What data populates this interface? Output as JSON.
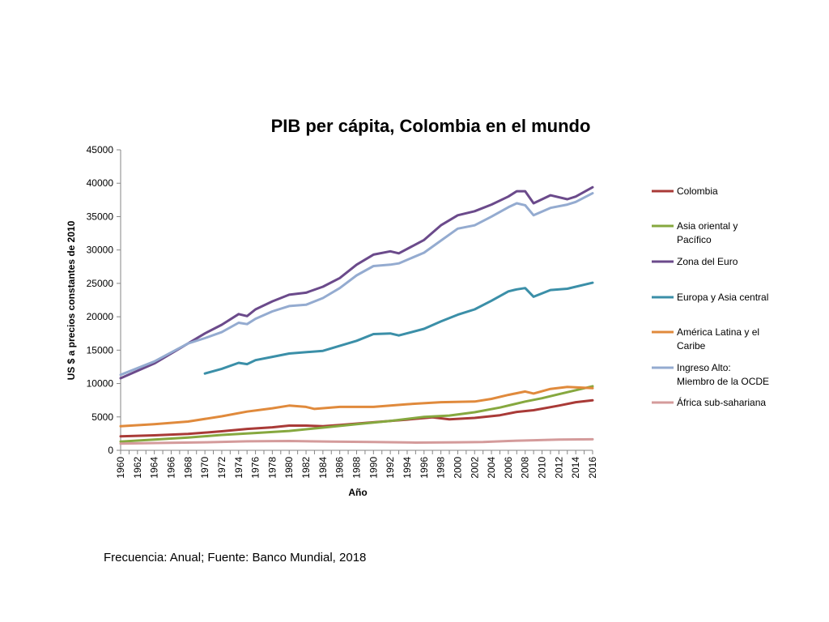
{
  "chart_data": {
    "type": "line",
    "title": "PIB per cápita, Colombia en el mundo",
    "xlabel": "Año",
    "ylabel": "US $ a precios constantes de 2010",
    "xlim": [
      1960,
      2016
    ],
    "ylim": [
      0,
      45000
    ],
    "yticks": [
      0,
      5000,
      10000,
      15000,
      20000,
      25000,
      30000,
      35000,
      40000,
      45000
    ],
    "xticks": [
      1960,
      1962,
      1964,
      1966,
      1968,
      1970,
      1972,
      1974,
      1976,
      1978,
      1980,
      1982,
      1984,
      1986,
      1988,
      1990,
      1992,
      1994,
      1996,
      1998,
      2000,
      2002,
      2004,
      2006,
      2008,
      2010,
      2012,
      2014,
      2016
    ],
    "grid": false,
    "legend_position": "right",
    "series": [
      {
        "name": "Colombia",
        "color": "#a93a37",
        "points": [
          [
            1960,
            2100
          ],
          [
            1964,
            2250
          ],
          [
            1968,
            2450
          ],
          [
            1972,
            2850
          ],
          [
            1975,
            3200
          ],
          [
            1978,
            3450
          ],
          [
            1980,
            3700
          ],
          [
            1982,
            3700
          ],
          [
            1984,
            3600
          ],
          [
            1986,
            3800
          ],
          [
            1990,
            4200
          ],
          [
            1994,
            4600
          ],
          [
            1997,
            4950
          ],
          [
            1999,
            4650
          ],
          [
            2002,
            4850
          ],
          [
            2005,
            5250
          ],
          [
            2007,
            5750
          ],
          [
            2009,
            6000
          ],
          [
            2012,
            6700
          ],
          [
            2014,
            7200
          ],
          [
            2016,
            7500
          ]
        ]
      },
      {
        "name": "Asia oriental y Pacífico",
        "color": "#86a83f",
        "points": [
          [
            1960,
            1300
          ],
          [
            1964,
            1600
          ],
          [
            1968,
            1900
          ],
          [
            1972,
            2300
          ],
          [
            1976,
            2600
          ],
          [
            1980,
            2900
          ],
          [
            1984,
            3400
          ],
          [
            1988,
            3900
          ],
          [
            1992,
            4400
          ],
          [
            1996,
            5000
          ],
          [
            1999,
            5200
          ],
          [
            2002,
            5700
          ],
          [
            2005,
            6400
          ],
          [
            2008,
            7300
          ],
          [
            2010,
            7800
          ],
          [
            2012,
            8400
          ],
          [
            2014,
            9000
          ],
          [
            2016,
            9600
          ]
        ]
      },
      {
        "name": "Zona del Euro",
        "color": "#6b4a8b",
        "points": [
          [
            1960,
            10800
          ],
          [
            1964,
            13000
          ],
          [
            1968,
            16000
          ],
          [
            1970,
            17500
          ],
          [
            1972,
            18800
          ],
          [
            1974,
            20400
          ],
          [
            1975,
            20100
          ],
          [
            1976,
            21100
          ],
          [
            1978,
            22300
          ],
          [
            1980,
            23300
          ],
          [
            1982,
            23600
          ],
          [
            1984,
            24500
          ],
          [
            1986,
            25800
          ],
          [
            1988,
            27800
          ],
          [
            1990,
            29300
          ],
          [
            1992,
            29800
          ],
          [
            1993,
            29500
          ],
          [
            1996,
            31500
          ],
          [
            1998,
            33700
          ],
          [
            2000,
            35200
          ],
          [
            2002,
            35800
          ],
          [
            2004,
            36800
          ],
          [
            2006,
            38000
          ],
          [
            2007,
            38800
          ],
          [
            2008,
            38800
          ],
          [
            2009,
            37000
          ],
          [
            2011,
            38200
          ],
          [
            2013,
            37600
          ],
          [
            2014,
            38000
          ],
          [
            2016,
            39400
          ]
        ]
      },
      {
        "name": "Europa y Asia central",
        "color": "#3b8fa8",
        "points": [
          [
            1970,
            11500
          ],
          [
            1972,
            12200
          ],
          [
            1974,
            13100
          ],
          [
            1975,
            12900
          ],
          [
            1976,
            13500
          ],
          [
            1978,
            14000
          ],
          [
            1980,
            14500
          ],
          [
            1984,
            14900
          ],
          [
            1988,
            16400
          ],
          [
            1990,
            17400
          ],
          [
            1992,
            17500
          ],
          [
            1993,
            17200
          ],
          [
            1996,
            18200
          ],
          [
            1998,
            19300
          ],
          [
            2000,
            20300
          ],
          [
            2002,
            21100
          ],
          [
            2004,
            22400
          ],
          [
            2006,
            23800
          ],
          [
            2007,
            24100
          ],
          [
            2008,
            24300
          ],
          [
            2009,
            23000
          ],
          [
            2011,
            24000
          ],
          [
            2013,
            24200
          ],
          [
            2016,
            25100
          ]
        ]
      },
      {
        "name": "América Latina y el Caribe",
        "color": "#e08a3c",
        "points": [
          [
            1960,
            3600
          ],
          [
            1964,
            3900
          ],
          [
            1968,
            4300
          ],
          [
            1972,
            5100
          ],
          [
            1975,
            5800
          ],
          [
            1978,
            6300
          ],
          [
            1980,
            6700
          ],
          [
            1982,
            6500
          ],
          [
            1983,
            6200
          ],
          [
            1986,
            6500
          ],
          [
            1990,
            6500
          ],
          [
            1994,
            6900
          ],
          [
            1998,
            7200
          ],
          [
            2002,
            7300
          ],
          [
            2004,
            7700
          ],
          [
            2006,
            8300
          ],
          [
            2008,
            8800
          ],
          [
            2009,
            8500
          ],
          [
            2011,
            9200
          ],
          [
            2013,
            9500
          ],
          [
            2016,
            9300
          ]
        ]
      },
      {
        "name": "Ingreso Alto: Miembro de la OCDE",
        "color": "#94abd0",
        "points": [
          [
            1960,
            11300
          ],
          [
            1964,
            13300
          ],
          [
            1968,
            16000
          ],
          [
            1970,
            16800
          ],
          [
            1972,
            17700
          ],
          [
            1974,
            19100
          ],
          [
            1975,
            18900
          ],
          [
            1976,
            19700
          ],
          [
            1978,
            20800
          ],
          [
            1980,
            21600
          ],
          [
            1982,
            21800
          ],
          [
            1984,
            22800
          ],
          [
            1986,
            24300
          ],
          [
            1988,
            26200
          ],
          [
            1990,
            27600
          ],
          [
            1992,
            27800
          ],
          [
            1993,
            28000
          ],
          [
            1996,
            29600
          ],
          [
            1998,
            31400
          ],
          [
            2000,
            33200
          ],
          [
            2002,
            33700
          ],
          [
            2004,
            35000
          ],
          [
            2006,
            36400
          ],
          [
            2007,
            37000
          ],
          [
            2008,
            36700
          ],
          [
            2009,
            35200
          ],
          [
            2011,
            36300
          ],
          [
            2013,
            36800
          ],
          [
            2014,
            37200
          ],
          [
            2016,
            38500
          ]
        ]
      },
      {
        "name": "África sub-sahariana",
        "color": "#d49b9b",
        "points": [
          [
            1960,
            1000
          ],
          [
            1965,
            1100
          ],
          [
            1970,
            1200
          ],
          [
            1975,
            1350
          ],
          [
            1980,
            1400
          ],
          [
            1985,
            1300
          ],
          [
            1990,
            1250
          ],
          [
            1995,
            1150
          ],
          [
            2000,
            1200
          ],
          [
            2003,
            1250
          ],
          [
            2006,
            1400
          ],
          [
            2009,
            1500
          ],
          [
            2012,
            1600
          ],
          [
            2016,
            1650
          ]
        ]
      }
    ]
  },
  "legend": [
    {
      "lines": [
        "Colombia"
      ],
      "color": "#a93a37"
    },
    {
      "lines": [
        "Asia oriental y",
        "Pacífico"
      ],
      "color": "#86a83f"
    },
    {
      "lines": [
        "Zona del Euro"
      ],
      "color": "#6b4a8b"
    },
    {
      "lines": [
        "Europa y Asia central"
      ],
      "color": "#3b8fa8"
    },
    {
      "lines": [
        "América Latina y el",
        "Caribe"
      ],
      "color": "#e08a3c"
    },
    {
      "lines": [
        "Ingreso Alto:",
        "Miembro de la OCDE"
      ],
      "color": "#94abd0"
    },
    {
      "lines": [
        "África sub-sahariana"
      ],
      "color": "#d49b9b"
    }
  ],
  "footnote": "Frecuencia: Anual; Fuente: Banco Mundial, 2018"
}
